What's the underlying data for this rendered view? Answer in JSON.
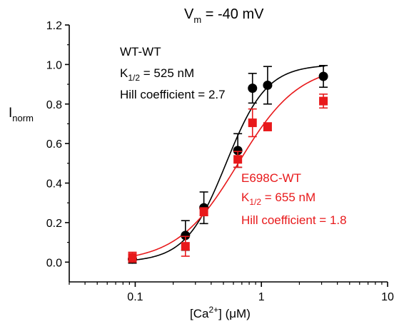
{
  "chart_data": {
    "type": "scatter",
    "title_main": "V",
    "title_sub": "m",
    "title_rest": " = -40 mV",
    "xlabel": {
      "pre": "[Ca",
      "sup": "2+",
      "post": "] (μM)"
    },
    "ylabel": {
      "main": "I",
      "sub": "norm"
    },
    "x_scale": "log",
    "xlim": [
      0.03,
      10
    ],
    "ylim": [
      -0.1,
      1.2
    ],
    "x_ticks": [
      0.1,
      1,
      10
    ],
    "x_tick_labels": [
      "0.1",
      "1",
      "10"
    ],
    "y_ticks": [
      0.0,
      0.2,
      0.4,
      0.6,
      0.8,
      1.0,
      1.2
    ],
    "y_tick_labels": [
      "0.0",
      "0.2",
      "0.4",
      "0.6",
      "0.8",
      "1.0",
      "1.2"
    ],
    "series": [
      {
        "name": "WT-WT",
        "color": "#000000",
        "marker": "circle",
        "x": [
          0.095,
          0.25,
          0.35,
          0.65,
          0.85,
          1.12,
          3.1
        ],
        "y": [
          0.015,
          0.135,
          0.275,
          0.565,
          0.88,
          0.895,
          0.94
        ],
        "err": [
          0.02,
          0.075,
          0.08,
          0.085,
          0.075,
          0.095,
          0.055
        ],
        "fit": {
          "k_half": 0.525,
          "hill": 2.7
        },
        "annotation": [
          "WT-WT",
          "K",
          "1/2",
          " = 525 nM",
          "Hill coefficient = 2.7"
        ]
      },
      {
        "name": "E698C-WT",
        "color": "#e8191b",
        "marker": "square",
        "x": [
          0.095,
          0.25,
          0.35,
          0.65,
          0.85,
          1.12,
          3.1
        ],
        "y": [
          0.025,
          0.08,
          0.255,
          0.52,
          0.705,
          0.685,
          0.815
        ],
        "err": [
          0.025,
          0.05,
          0.02,
          0.04,
          0.07,
          0.02,
          0.035
        ],
        "fit": {
          "k_half": 0.655,
          "hill": 1.8
        },
        "annotation": [
          "E698C-WT",
          "K",
          "1/2",
          " = 655 nM",
          "Hill coefficient = 1.8"
        ]
      }
    ]
  }
}
